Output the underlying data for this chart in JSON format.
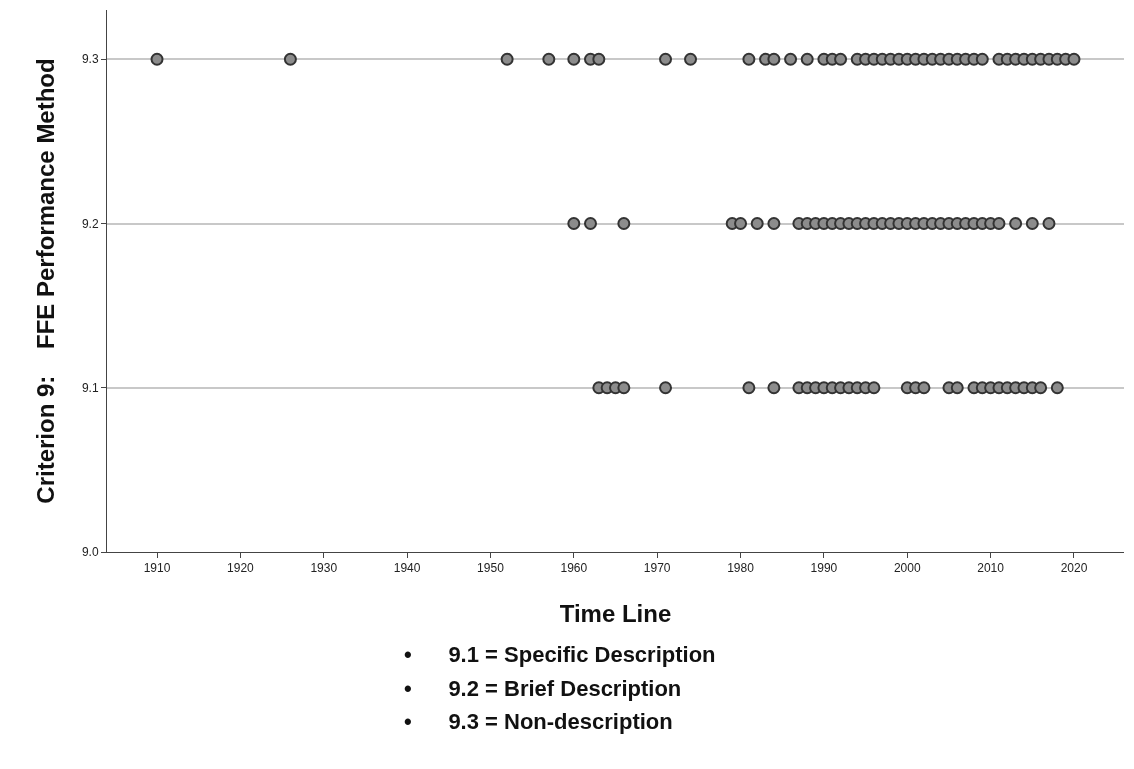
{
  "chart_data": {
    "type": "scatter",
    "xlabel": "Time Line",
    "ylabel": "Criterion 9:    FFE Performance Method",
    "xlim": [
      1904,
      2026
    ],
    "xticks": [
      1910,
      1920,
      1930,
      1940,
      1950,
      1960,
      1970,
      1980,
      1990,
      2000,
      2010,
      2020
    ],
    "ylim": [
      9.0,
      9.33
    ],
    "yticks": [
      {
        "value": 9.0,
        "label": "9.0"
      },
      {
        "value": 9.1,
        "label": "9.1"
      },
      {
        "value": 9.2,
        "label": "9.2"
      },
      {
        "value": 9.3,
        "label": "9.3"
      }
    ],
    "grid": "y",
    "marker": "circle",
    "series": [
      {
        "color": "#8c8c8c",
        "x": [
          1910,
          1926,
          1952,
          1957,
          1960,
          1962,
          1963,
          1971,
          1974,
          1981,
          1983,
          1984,
          1986,
          1988,
          1990,
          1991,
          1992,
          1994,
          1995,
          1996,
          1997,
          1998,
          1999,
          2000,
          2001,
          2002,
          2003,
          2004,
          2005,
          2006,
          2007,
          2008,
          2009,
          2011,
          2012,
          2013,
          2014,
          2015,
          2016,
          2017,
          2018,
          2019,
          2020
        ],
        "values": [
          9.3,
          9.3,
          9.3,
          9.3,
          9.3,
          9.3,
          9.3,
          9.3,
          9.3,
          9.3,
          9.3,
          9.3,
          9.3,
          9.3,
          9.3,
          9.3,
          9.3,
          9.3,
          9.3,
          9.3,
          9.3,
          9.3,
          9.3,
          9.3,
          9.3,
          9.3,
          9.3,
          9.3,
          9.3,
          9.3,
          9.3,
          9.3,
          9.3,
          9.3,
          9.3,
          9.3,
          9.3,
          9.3,
          9.3,
          9.3,
          9.3,
          9.3,
          9.3
        ]
      },
      {
        "color": "#8c8c8c",
        "x": [
          1960,
          1962,
          1966,
          1979,
          1980,
          1982,
          1984,
          1987,
          1988,
          1989,
          1990,
          1991,
          1992,
          1993,
          1994,
          1995,
          1996,
          1997,
          1998,
          1999,
          2000,
          2001,
          2002,
          2003,
          2004,
          2005,
          2006,
          2007,
          2008,
          2009,
          2010,
          2011,
          2013,
          2015,
          2017
        ],
        "values": [
          9.2,
          9.2,
          9.2,
          9.2,
          9.2,
          9.2,
          9.2,
          9.2,
          9.2,
          9.2,
          9.2,
          9.2,
          9.2,
          9.2,
          9.2,
          9.2,
          9.2,
          9.2,
          9.2,
          9.2,
          9.2,
          9.2,
          9.2,
          9.2,
          9.2,
          9.2,
          9.2,
          9.2,
          9.2,
          9.2,
          9.2,
          9.2,
          9.2,
          9.2,
          9.2
        ]
      },
      {
        "color": "#8c8c8c",
        "x": [
          1963,
          1964,
          1965,
          1966,
          1971,
          1981,
          1984,
          1987,
          1988,
          1989,
          1990,
          1991,
          1992,
          1993,
          1994,
          1995,
          1996,
          2000,
          2001,
          2002,
          2005,
          2006,
          2008,
          2009,
          2010,
          2011,
          2012,
          2013,
          2014,
          2015,
          2016,
          2018
        ],
        "values": [
          9.1,
          9.1,
          9.1,
          9.1,
          9.1,
          9.1,
          9.1,
          9.1,
          9.1,
          9.1,
          9.1,
          9.1,
          9.1,
          9.1,
          9.1,
          9.1,
          9.1,
          9.1,
          9.1,
          9.1,
          9.1,
          9.1,
          9.1,
          9.1,
          9.1,
          9.1,
          9.1,
          9.1,
          9.1,
          9.1,
          9.1,
          9.1
        ]
      }
    ],
    "annotations": [
      "•      9.1 = Specific Description",
      "•      9.2 = Brief Description",
      "•      9.3 = Non-description"
    ]
  }
}
